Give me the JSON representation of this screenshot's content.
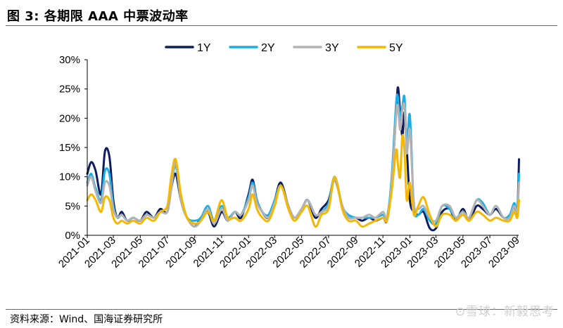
{
  "figure": {
    "title": "图 3:  各期限 AAA 中票波动率",
    "source": "资料来源：Wind、国海证券研究所",
    "watermark": "⊙雪球：新毅思考"
  },
  "chart_data": {
    "type": "line",
    "ylim": [
      0,
      30
    ],
    "y_ticks": [
      "0%",
      "5%",
      "10%",
      "15%",
      "20%",
      "25%",
      "30%"
    ],
    "x_range": [
      "2021-01",
      "2023-09"
    ],
    "x_ticks": [
      "2021-01",
      "2021-03",
      "2021-05",
      "2021-07",
      "2021-09",
      "2021-11",
      "2022-01",
      "2022-03",
      "2022-05",
      "2022-07",
      "2022-09",
      "2022-11",
      "2023-01",
      "2023-03",
      "2023-05",
      "2023-07",
      "2023-09"
    ],
    "grid": false,
    "legend_position": "top",
    "series": [
      {
        "name": "1Y",
        "color": "#0d1d5e",
        "width": 3,
        "x": [
          "2021-01-01",
          "2021-01-10",
          "2021-01-20",
          "2021-02-01",
          "2021-02-10",
          "2021-02-20",
          "2021-03-01",
          "2021-03-10",
          "2021-03-20",
          "2021-04-01",
          "2021-04-15",
          "2021-05-01",
          "2021-05-15",
          "2021-06-01",
          "2021-06-15",
          "2021-07-01",
          "2021-07-10",
          "2021-07-20",
          "2021-08-01",
          "2021-08-15",
          "2021-09-01",
          "2021-09-15",
          "2021-10-01",
          "2021-10-15",
          "2021-11-01",
          "2021-11-15",
          "2021-12-01",
          "2021-12-15",
          "2022-01-01",
          "2022-01-10",
          "2022-01-20",
          "2022-02-01",
          "2022-02-15",
          "2022-03-01",
          "2022-03-15",
          "2022-04-01",
          "2022-04-15",
          "2022-05-01",
          "2022-05-15",
          "2022-06-01",
          "2022-06-15",
          "2022-07-01",
          "2022-07-15",
          "2022-08-01",
          "2022-08-15",
          "2022-09-01",
          "2022-09-15",
          "2022-10-01",
          "2022-10-15",
          "2022-11-01",
          "2022-11-10",
          "2022-11-20",
          "2022-12-01",
          "2022-12-05",
          "2022-12-10",
          "2022-12-15",
          "2022-12-20",
          "2022-12-25",
          "2023-01-01",
          "2023-01-10",
          "2023-01-20",
          "2023-02-01",
          "2023-02-15",
          "2023-03-01",
          "2023-03-15",
          "2023-04-01",
          "2023-04-15",
          "2023-05-01",
          "2023-05-15",
          "2023-06-01",
          "2023-06-15",
          "2023-07-01",
          "2023-07-15",
          "2023-08-01",
          "2023-08-15",
          "2023-08-25",
          "2023-09-01",
          "2023-09-05"
        ],
        "y": [
          10.5,
          12.5,
          11,
          7,
          14.3,
          13.5,
          6,
          3,
          4,
          2.5,
          3,
          2.5,
          4,
          3,
          4.5,
          4,
          8,
          10.5,
          6,
          3,
          1.5,
          3,
          4,
          1.5,
          4,
          2.5,
          4,
          3,
          7,
          9.5,
          6,
          4,
          3,
          6,
          9,
          5,
          3,
          4.5,
          6,
          3,
          4.5,
          6,
          9.5,
          5,
          3,
          3,
          2.5,
          3,
          2.5,
          3,
          2.5,
          8,
          21,
          25.3,
          21,
          17,
          21,
          15,
          6,
          4,
          3.5,
          4,
          1.2,
          1.2,
          4,
          4.5,
          2.5,
          4.5,
          2.5,
          5,
          4.5,
          3.5,
          4.5,
          3,
          3,
          5,
          4,
          13
        ]
      },
      {
        "name": "2Y",
        "color": "#19aee7",
        "width": 3,
        "x": [
          "2021-01-01",
          "2021-01-10",
          "2021-01-20",
          "2021-02-01",
          "2021-02-10",
          "2021-02-20",
          "2021-03-01",
          "2021-03-10",
          "2021-03-20",
          "2021-04-01",
          "2021-04-15",
          "2021-05-01",
          "2021-05-15",
          "2021-06-01",
          "2021-06-15",
          "2021-07-01",
          "2021-07-10",
          "2021-07-20",
          "2021-08-01",
          "2021-08-15",
          "2021-09-01",
          "2021-09-15",
          "2021-10-01",
          "2021-10-15",
          "2021-11-01",
          "2021-11-15",
          "2021-12-01",
          "2021-12-15",
          "2022-01-01",
          "2022-01-10",
          "2022-01-20",
          "2022-02-01",
          "2022-02-15",
          "2022-03-01",
          "2022-03-15",
          "2022-04-01",
          "2022-04-15",
          "2022-05-01",
          "2022-05-15",
          "2022-06-01",
          "2022-06-15",
          "2022-07-01",
          "2022-07-15",
          "2022-08-01",
          "2022-08-15",
          "2022-09-01",
          "2022-09-15",
          "2022-10-01",
          "2022-10-15",
          "2022-11-01",
          "2022-11-10",
          "2022-11-20",
          "2022-12-01",
          "2022-12-05",
          "2022-12-10",
          "2022-12-15",
          "2022-12-20",
          "2022-12-25",
          "2023-01-01",
          "2023-01-10",
          "2023-01-20",
          "2023-02-01",
          "2023-02-15",
          "2023-03-01",
          "2023-03-15",
          "2023-04-01",
          "2023-04-15",
          "2023-05-01",
          "2023-05-15",
          "2023-06-01",
          "2023-06-15",
          "2023-07-01",
          "2023-07-15",
          "2023-08-01",
          "2023-08-15",
          "2023-08-25",
          "2023-09-01",
          "2023-09-05"
        ],
        "y": [
          9,
          10.5,
          8,
          6,
          11,
          10.5,
          5,
          3,
          3.5,
          2.5,
          3,
          2.5,
          3.5,
          3,
          4,
          4,
          8,
          12,
          6,
          3,
          2.5,
          3,
          5,
          2.5,
          5,
          3,
          4,
          3.5,
          6.5,
          9,
          6,
          4,
          3.5,
          6,
          8.5,
          5,
          3,
          4.5,
          6,
          3.5,
          4,
          5.5,
          10,
          5,
          3.5,
          3,
          3,
          3,
          3,
          3.5,
          3,
          9,
          22.5,
          23.5,
          20,
          22,
          23.5,
          15,
          20.5,
          5,
          3.5,
          4.5,
          2.5,
          2,
          5,
          4.5,
          3,
          4,
          3,
          6,
          5.5,
          3.5,
          5,
          3,
          3.5,
          5.5,
          4.5,
          10.5
        ]
      },
      {
        "name": "3Y",
        "color": "#b3b3b3",
        "width": 3,
        "x": [
          "2021-01-01",
          "2021-01-10",
          "2021-01-20",
          "2021-02-01",
          "2021-02-10",
          "2021-02-20",
          "2021-03-01",
          "2021-03-10",
          "2021-03-20",
          "2021-04-01",
          "2021-04-15",
          "2021-05-01",
          "2021-05-15",
          "2021-06-01",
          "2021-06-15",
          "2021-07-01",
          "2021-07-10",
          "2021-07-20",
          "2021-08-01",
          "2021-08-15",
          "2021-09-01",
          "2021-09-15",
          "2021-10-01",
          "2021-10-15",
          "2021-11-01",
          "2021-11-15",
          "2021-12-01",
          "2021-12-15",
          "2022-01-01",
          "2022-01-10",
          "2022-01-20",
          "2022-02-01",
          "2022-02-15",
          "2022-03-01",
          "2022-03-15",
          "2022-04-01",
          "2022-04-15",
          "2022-05-01",
          "2022-05-15",
          "2022-06-01",
          "2022-06-15",
          "2022-07-01",
          "2022-07-15",
          "2022-08-01",
          "2022-08-15",
          "2022-09-01",
          "2022-09-15",
          "2022-10-01",
          "2022-10-15",
          "2022-11-01",
          "2022-11-10",
          "2022-11-20",
          "2022-12-01",
          "2022-12-05",
          "2022-12-10",
          "2022-12-15",
          "2022-12-20",
          "2022-12-25",
          "2023-01-01",
          "2023-01-10",
          "2023-01-20",
          "2023-02-01",
          "2023-02-15",
          "2023-03-01",
          "2023-03-15",
          "2023-04-01",
          "2023-04-15",
          "2023-05-01",
          "2023-05-15",
          "2023-06-01",
          "2023-06-15",
          "2023-07-01",
          "2023-07-15",
          "2023-08-01",
          "2023-08-15",
          "2023-08-25",
          "2023-09-01",
          "2023-09-05"
        ],
        "y": [
          8.5,
          10,
          7.5,
          5.5,
          9,
          8.5,
          4.5,
          3,
          3.5,
          2.5,
          3,
          2.5,
          3.5,
          3,
          4,
          4,
          8,
          12.5,
          6,
          3,
          1.5,
          2.5,
          4.5,
          2,
          4.5,
          2.5,
          4,
          3.5,
          6,
          8.5,
          5.5,
          4,
          3,
          5.5,
          8.5,
          5,
          3,
          4.5,
          6,
          3.5,
          4,
          5,
          9.5,
          5,
          3,
          3,
          3,
          3.5,
          3,
          4,
          3,
          8,
          20.5,
          22,
          18,
          21.5,
          22,
          14,
          18,
          5.5,
          4.5,
          5,
          3,
          2.5,
          5,
          5,
          3,
          4,
          3,
          6,
          5,
          3.5,
          5,
          3,
          3,
          5,
          4,
          9
        ]
      },
      {
        "name": "5Y",
        "color": "#f5b800",
        "width": 3,
        "x": [
          "2021-01-01",
          "2021-01-10",
          "2021-01-20",
          "2021-02-01",
          "2021-02-10",
          "2021-02-20",
          "2021-03-01",
          "2021-03-10",
          "2021-03-20",
          "2021-04-01",
          "2021-04-15",
          "2021-05-01",
          "2021-05-15",
          "2021-06-01",
          "2021-06-15",
          "2021-07-01",
          "2021-07-10",
          "2021-07-20",
          "2021-08-01",
          "2021-08-15",
          "2021-09-01",
          "2021-09-15",
          "2021-10-01",
          "2021-10-15",
          "2021-11-01",
          "2021-11-15",
          "2021-12-01",
          "2021-12-15",
          "2022-01-01",
          "2022-01-10",
          "2022-01-20",
          "2022-02-01",
          "2022-02-15",
          "2022-03-01",
          "2022-03-15",
          "2022-04-01",
          "2022-04-15",
          "2022-05-01",
          "2022-05-15",
          "2022-06-01",
          "2022-06-15",
          "2022-07-01",
          "2022-07-15",
          "2022-08-01",
          "2022-08-15",
          "2022-09-01",
          "2022-09-15",
          "2022-10-01",
          "2022-10-15",
          "2022-11-01",
          "2022-11-10",
          "2022-11-20",
          "2022-12-01",
          "2022-12-05",
          "2022-12-10",
          "2022-12-15",
          "2022-12-20",
          "2022-12-25",
          "2023-01-01",
          "2023-01-10",
          "2023-01-20",
          "2023-02-01",
          "2023-02-15",
          "2023-03-01",
          "2023-03-15",
          "2023-04-01",
          "2023-04-15",
          "2023-05-01",
          "2023-05-15",
          "2023-06-01",
          "2023-06-15",
          "2023-07-01",
          "2023-07-15",
          "2023-08-01",
          "2023-08-15",
          "2023-08-25",
          "2023-09-01",
          "2023-09-05"
        ],
        "y": [
          6,
          7,
          6,
          4,
          6.5,
          6,
          3,
          2,
          2.5,
          2,
          2.5,
          2,
          3,
          2.5,
          4,
          5,
          10,
          13,
          7,
          3,
          2,
          2.5,
          4,
          2.5,
          6,
          3,
          3,
          2.5,
          4.5,
          7,
          4.5,
          3,
          2.5,
          5,
          8.5,
          4.5,
          2.5,
          4,
          5,
          1.5,
          3.5,
          4.5,
          10,
          4.5,
          2.5,
          2.5,
          1.5,
          2,
          2.5,
          3,
          2.5,
          7,
          14.5,
          12,
          10,
          17,
          14,
          6,
          9,
          3.5,
          5,
          6.5,
          3.5,
          1.5,
          3.5,
          3.5,
          2.5,
          3.5,
          2.5,
          4,
          3.5,
          2.5,
          3,
          2.5,
          2.5,
          4,
          3,
          6
        ]
      }
    ]
  }
}
